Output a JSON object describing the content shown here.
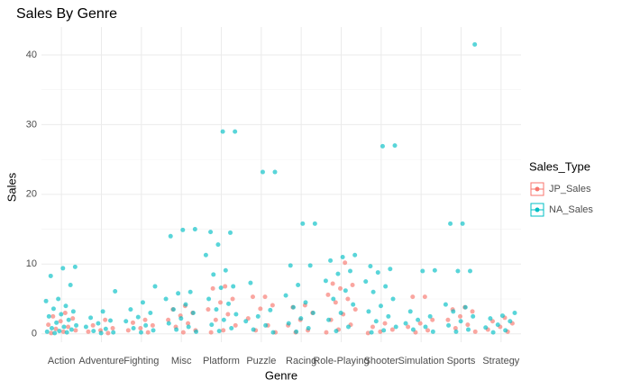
{
  "chart_data": {
    "type": "jitter",
    "title": "Sales By Genre",
    "x_label": "Genre",
    "y_label": "Sales",
    "legend_title": "Sales_Type",
    "categories": [
      "Action",
      "Adventure",
      "Fighting",
      "Misc",
      "Platform",
      "Puzzle",
      "Racing",
      "Role-Playing",
      "Shooter",
      "Simulation",
      "Sports",
      "Strategy"
    ],
    "ylim": [
      -1.2,
      44
    ],
    "yticks": [
      0,
      10,
      20,
      30,
      40
    ],
    "y_minor_ticks": [
      5,
      15,
      25,
      35
    ],
    "grid": true,
    "legend_position": "right",
    "series": [
      {
        "name": "JP_Sales",
        "color": "#F8766D",
        "values": [
          [
            3.0,
            2.5,
            2.2,
            1.8,
            1.3,
            1.0,
            0.7,
            0.5,
            0.3,
            0.1
          ],
          [
            2.0,
            1.2,
            0.8,
            0.5,
            0.3,
            0.1
          ],
          [
            2.0,
            1.6,
            1.2,
            0.8,
            0.5,
            0.2
          ],
          [
            4.0,
            3.5,
            3.0,
            2.6,
            2.0,
            1.5,
            1.0,
            0.5,
            0.2
          ],
          [
            6.8,
            6.5,
            5.0,
            4.5,
            3.5,
            2.8,
            2.0,
            1.2,
            0.5,
            0.2
          ],
          [
            5.3,
            5.3,
            4.1,
            3.6,
            2.2,
            1.2,
            0.5,
            0.2
          ],
          [
            4.1,
            3.8,
            3.0,
            2.0,
            1.2,
            0.5,
            0.2
          ],
          [
            10.2,
            7.2,
            7.0,
            6.5,
            5.6,
            5.0,
            4.5,
            3.5,
            2.8,
            2.0,
            1.3,
            0.6,
            0.2
          ],
          [
            1.5,
            1.0,
            0.6,
            0.3,
            0.1
          ],
          [
            5.3,
            5.3,
            2.0,
            1.5,
            1.0,
            0.5,
            0.2
          ],
          [
            3.8,
            3.5,
            3.2,
            2.5,
            2.0,
            1.3,
            0.8,
            0.3
          ],
          [
            2.3,
            1.8,
            1.5,
            1.0,
            0.6,
            0.3
          ]
        ]
      },
      {
        "name": "NA_Sales",
        "color": "#00BFC4",
        "values": [
          [
            9.6,
            9.4,
            8.3,
            7.0,
            5.0,
            4.7,
            4.0,
            3.6,
            3.2,
            2.8,
            2.5,
            2.0,
            1.6,
            1.2,
            1.0,
            0.8,
            0.6,
            0.4,
            0.3,
            0.2,
            0.1
          ],
          [
            6.1,
            3.2,
            2.3,
            1.9,
            1.5,
            1.0,
            0.7,
            0.4,
            0.2,
            0.1
          ],
          [
            6.8,
            4.5,
            3.5,
            3.0,
            2.4,
            1.8,
            1.2,
            0.8,
            0.5,
            0.2
          ],
          [
            15.0,
            14.9,
            14.0,
            6.0,
            5.8,
            5.0,
            4.2,
            3.5,
            3.0,
            2.2,
            1.5,
            1.0,
            0.6,
            0.3
          ],
          [
            29.0,
            29.0,
            14.6,
            14.5,
            12.8,
            11.3,
            9.1,
            8.5,
            6.8,
            6.6,
            5.0,
            4.3,
            3.5,
            2.8,
            2.0,
            1.3,
            0.8,
            0.4
          ],
          [
            23.2,
            23.2,
            7.3,
            3.4,
            2.5,
            1.8,
            1.2,
            0.6,
            0.2
          ],
          [
            15.8,
            15.8,
            9.8,
            9.8,
            7.0,
            5.5,
            4.5,
            3.8,
            3.0,
            2.2,
            1.5,
            0.8,
            0.3
          ],
          [
            11.3,
            11.0,
            10.5,
            9.0,
            8.6,
            7.6,
            6.2,
            5.0,
            4.2,
            3.0,
            2.0,
            1.0,
            0.4
          ],
          [
            27.0,
            26.9,
            9.7,
            9.3,
            8.8,
            7.5,
            6.8,
            6.0,
            5.0,
            4.0,
            3.2,
            2.5,
            1.8,
            1.0,
            0.5,
            0.2
          ],
          [
            9.1,
            9.0,
            3.2,
            2.5,
            2.0,
            1.5,
            1.0,
            0.6,
            0.3
          ],
          [
            41.5,
            15.8,
            15.8,
            9.0,
            9.0,
            4.2,
            3.8,
            3.2,
            2.5,
            1.8,
            1.2,
            0.6,
            0.3
          ],
          [
            3.0,
            2.6,
            2.2,
            1.8,
            1.3,
            0.9,
            0.5,
            0.2
          ]
        ]
      }
    ]
  }
}
